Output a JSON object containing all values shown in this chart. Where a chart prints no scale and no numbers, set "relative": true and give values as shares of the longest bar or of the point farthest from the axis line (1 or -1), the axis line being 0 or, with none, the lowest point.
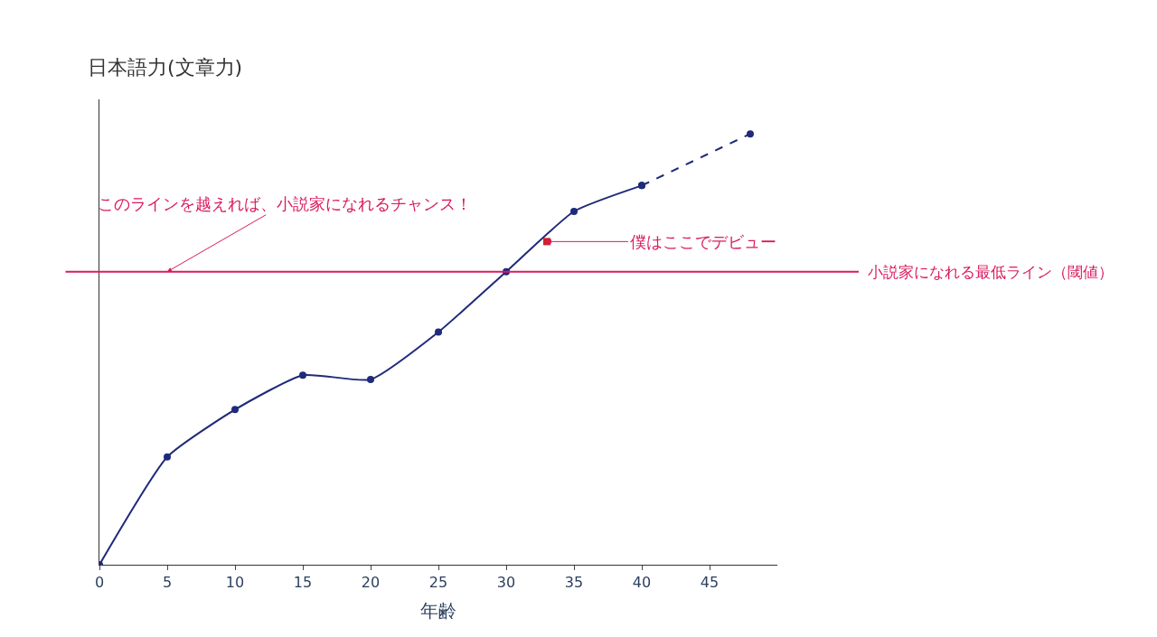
{
  "chart_data": {
    "type": "line",
    "relative": true,
    "xlabel": "年齢",
    "ylabel": "日本語力(文章力)",
    "xlim": [
      0,
      50
    ],
    "xticks": [
      0,
      5,
      10,
      15,
      20,
      25,
      30,
      35,
      40,
      45
    ],
    "series": [
      {
        "color": "#1f2a7a",
        "marker": "circle",
        "line_style": "solid",
        "x": [
          0,
          5,
          10,
          15,
          20,
          25,
          30,
          35,
          40
        ],
        "values": [
          0,
          0.25,
          0.36,
          0.44,
          0.43,
          0.54,
          0.68,
          0.82,
          0.88
        ]
      },
      {
        "color": "#1f2a7a",
        "marker": "circle",
        "line_style": "dashed",
        "x": [
          40,
          48
        ],
        "values": [
          0.88,
          1
        ]
      },
      {
        "type": "scatter",
        "color": "#d0202a",
        "marker": "square",
        "x": [
          33
        ],
        "values": [
          0.75
        ]
      }
    ],
    "ref_lines": [
      {
        "axis": "y",
        "value": 0.68,
        "label": "小説家になれる最低ライン（閾値）",
        "color": "#d81b60",
        "line_style": "solid"
      }
    ],
    "annotations": [
      {
        "text": "このラインを越えれば、小説家になれるチャンス！",
        "x": 5,
        "y": 0.68
      },
      {
        "text": "僕はここでデビュー",
        "x": 33,
        "y": 0.75
      }
    ]
  }
}
